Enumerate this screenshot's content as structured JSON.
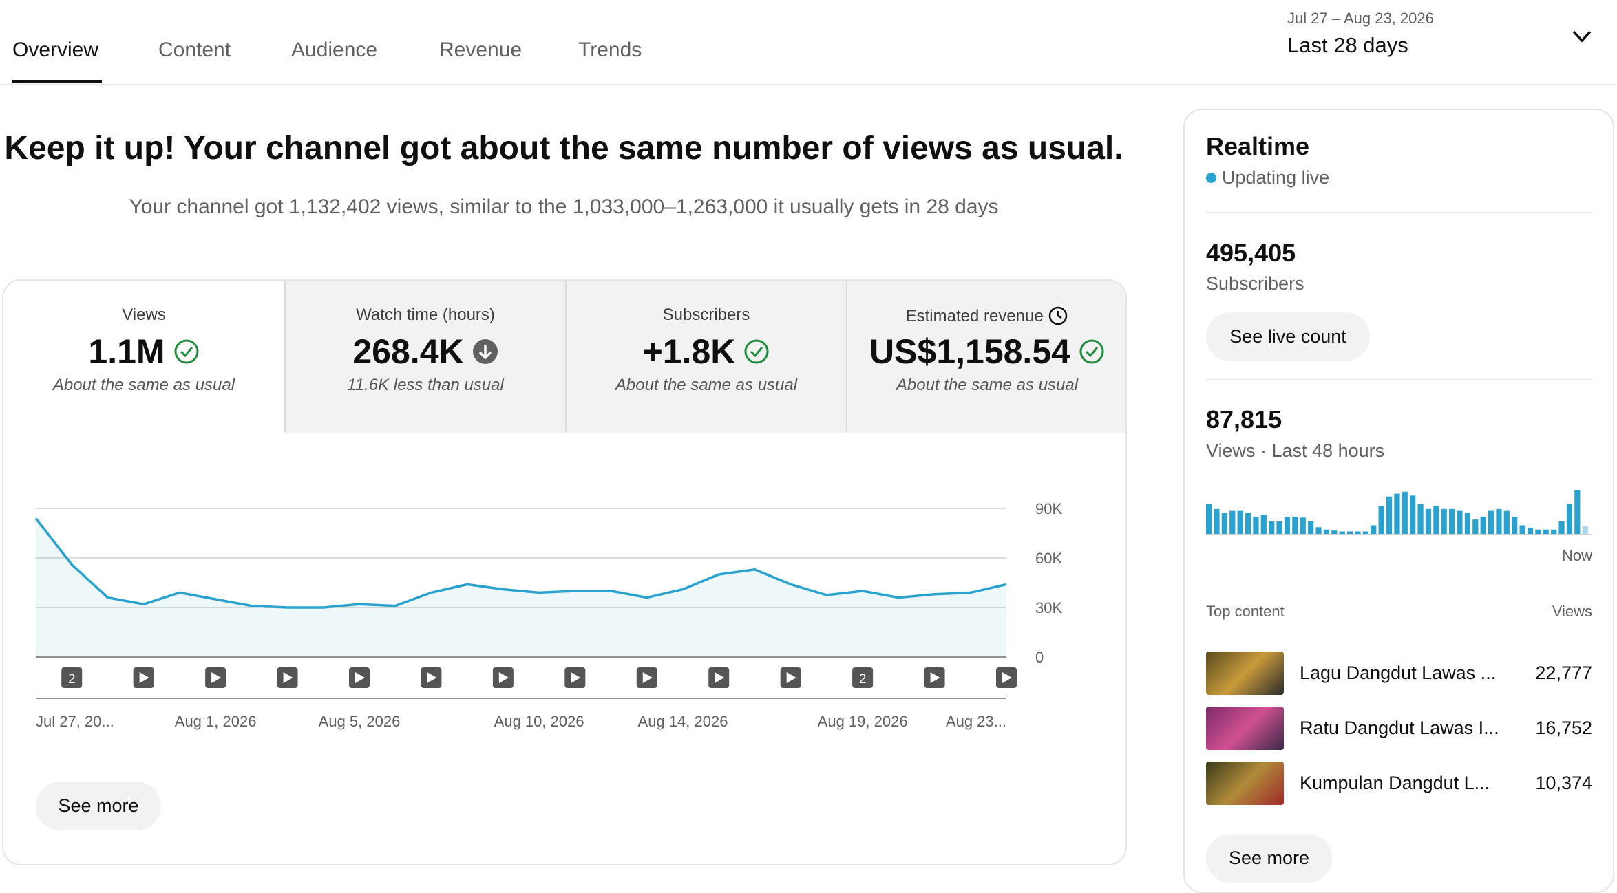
{
  "tabs": [
    "Overview",
    "Content",
    "Audience",
    "Revenue",
    "Trends"
  ],
  "date_range": {
    "dates": "Jul 27 – Aug 23, 2026",
    "label": "Last 28 days"
  },
  "headline": {
    "title": "Keep it up! Your channel got about the same number of views as usual.",
    "subtitle": "Your channel got 1,132,402 views, similar to the 1,033,000–1,263,000 it usually gets in 28 days"
  },
  "metrics": [
    {
      "label": "Views",
      "value": "1.1M",
      "note": "About the same as usual"
    },
    {
      "label": "Watch time (hours)",
      "value": "268.4K",
      "note": "11.6K less than usual"
    },
    {
      "label": "Subscribers",
      "value": "+1.8K",
      "note": "About the same as usual"
    },
    {
      "label": "Estimated revenue",
      "value": "US$1,158.54",
      "note": "About the same as usual"
    }
  ],
  "chart": {
    "type": "line",
    "color": "#2aa2d0",
    "grid": true,
    "x": [
      "Jul 27, 20...",
      null,
      null,
      null,
      null,
      "Aug 1, 2026",
      null,
      null,
      null,
      "Aug 5, 2026",
      null,
      null,
      null,
      null,
      "Aug 10, 2026",
      null,
      null,
      null,
      "Aug 14, 2026",
      null,
      null,
      null,
      null,
      "Aug 19, 2026",
      null,
      null,
      null,
      "Aug 23..."
    ],
    "values": [
      84000,
      56000,
      36000,
      32000,
      39000,
      35000,
      31000,
      30000,
      30000,
      32000,
      31000,
      39000,
      44000,
      41000,
      39000,
      40000,
      40000,
      36000,
      41000,
      50000,
      53000,
      44000,
      37500,
      40000,
      36000,
      38000,
      39000,
      44000
    ],
    "ylim": [
      0,
      90000
    ],
    "yticks": [
      0,
      {
        "value": 30000,
        "label": "30K"
      },
      {
        "value": 60000,
        "label": "60K"
      },
      {
        "value": 90000,
        "label": "90K"
      }
    ],
    "upload_markers": [
      "2",
      null,
      null,
      null,
      null,
      null,
      null,
      null,
      null,
      null,
      null,
      "2",
      null,
      null
    ]
  },
  "see_more": "See more",
  "realtime": {
    "title": "Realtime",
    "status": "Updating live",
    "subscribers": {
      "value": "495,405",
      "label": "Subscribers"
    },
    "button": "See live count",
    "views": {
      "value": "87,815",
      "label": "Views · Last 48 hours"
    },
    "chart": {
      "type": "bar",
      "color": "#2aa2d0",
      "x_label": "Now",
      "values": [
        3100,
        2600,
        2200,
        2400,
        2400,
        2200,
        1800,
        2000,
        1300,
        1300,
        1800,
        1800,
        1700,
        1300,
        700,
        450,
        350,
        250,
        250,
        250,
        250,
        900,
        2900,
        3900,
        4200,
        4400,
        4000,
        3100,
        2600,
        2900,
        2600,
        2600,
        2400,
        2200,
        1500,
        1800,
        2400,
        2600,
        2400,
        1800,
        900,
        650,
        450,
        450,
        450,
        1300,
        3100,
        4600,
        800
      ]
    },
    "top_content": {
      "title": "Top content",
      "column": "Views",
      "rows": [
        {
          "title": "Lagu Dangdut Lawas ...",
          "views": "22,777"
        },
        {
          "title": "Ratu Dangdut Lawas I...",
          "views": "16,752"
        },
        {
          "title": "Kumpulan Dangdut L...",
          "views": "10,374"
        }
      ]
    },
    "see_more": "See more"
  }
}
